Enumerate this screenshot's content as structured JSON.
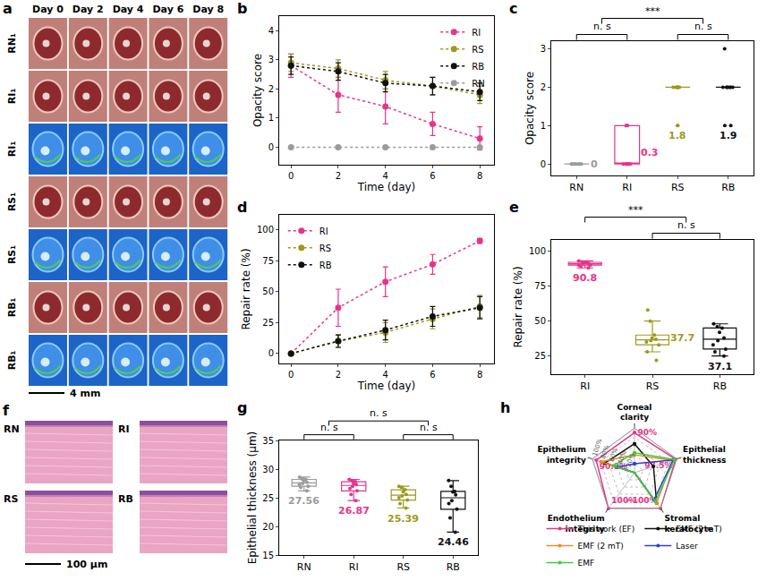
{
  "images": {
    "a": {
      "panel": "a",
      "columns": [
        "Day 0",
        "Day 2",
        "Day 4",
        "Day 6",
        "Day 8"
      ],
      "rows": [
        {
          "label": "RN₁",
          "kind": "photo"
        },
        {
          "label": "RI₁",
          "kind": "photo"
        },
        {
          "label": "RI₁",
          "kind": "fluorescein"
        },
        {
          "label": "RS₁",
          "kind": "photo"
        },
        {
          "label": "RS₁",
          "kind": "fluorescein"
        },
        {
          "label": "RB₁",
          "kind": "photo"
        },
        {
          "label": "RB₁",
          "kind": "fluorescein"
        }
      ],
      "scale_bar": "4 mm"
    },
    "f": {
      "panel": "f",
      "images": [
        "RN",
        "RI",
        "RS",
        "RB"
      ],
      "scale_bar": "100 µm"
    }
  },
  "chart_data": [
    {
      "panel": "b",
      "type": "line",
      "x_label": "Time (day)",
      "y_label": "Opacity score",
      "x": [
        0,
        2,
        4,
        6,
        8
      ],
      "xlim": [
        -0.5,
        8.6
      ],
      "xticks": [
        0,
        2,
        4,
        6,
        8
      ],
      "ylim": [
        -0.6,
        4.5
      ],
      "yticks": [
        0,
        1,
        2,
        3,
        4
      ],
      "legend": "top right",
      "line_style": "dotted",
      "marker": "circle",
      "series": [
        {
          "name": "RI",
          "color": "#e6348c",
          "values": [
            2.8,
            1.8,
            1.4,
            0.8,
            0.3
          ],
          "errors": [
            0.4,
            0.6,
            0.6,
            0.4,
            0.4
          ]
        },
        {
          "name": "RS",
          "color": "#9c9a1e",
          "values": [
            2.9,
            2.7,
            2.3,
            2.1,
            1.8
          ],
          "errors": [
            0.3,
            0.3,
            0.3,
            0.3,
            0.3
          ]
        },
        {
          "name": "RB",
          "color": "#111111",
          "values": [
            2.8,
            2.6,
            2.2,
            2.1,
            1.9
          ],
          "errors": [
            0.3,
            0.3,
            0.3,
            0.3,
            0.3
          ]
        },
        {
          "name": "RN",
          "color": "#9b9b9b",
          "values": [
            0,
            0,
            0,
            0,
            0
          ],
          "errors": [
            0,
            0,
            0,
            0,
            0
          ]
        }
      ]
    },
    {
      "panel": "c",
      "type": "box",
      "y_label": "Opacity score",
      "categories": [
        "RN",
        "RI",
        "RS",
        "RB"
      ],
      "colors": [
        "#9b9b9b",
        "#e6348c",
        "#9c9a1e",
        "#111111"
      ],
      "points": [
        [
          0,
          0,
          0,
          0,
          0,
          0,
          0,
          0,
          0,
          0
        ],
        [
          0,
          0,
          0,
          1,
          0,
          0,
          0,
          1,
          0,
          1
        ],
        [
          2,
          2,
          2,
          1,
          2,
          2,
          2,
          1,
          2,
          2
        ],
        [
          1,
          1,
          2,
          2,
          2,
          2,
          2,
          2,
          2,
          3
        ]
      ],
      "means": [
        0,
        0.3,
        1.8,
        1.9
      ],
      "data_labels": true,
      "ylim": [
        -0.3,
        3.2
      ],
      "yticks": [
        0,
        1,
        2,
        3
      ],
      "significance": [
        {
          "from": [
            "RN"
          ],
          "to": [
            "RI"
          ],
          "label": "n. s"
        },
        {
          "from": [
            "RS"
          ],
          "to": [
            "RB"
          ],
          "label": "n. s"
        },
        {
          "from": [
            "RN",
            "RI"
          ],
          "to": [
            "RS",
            "RB"
          ],
          "label": "***"
        }
      ]
    },
    {
      "panel": "d",
      "type": "line",
      "x_label": "Time (day)",
      "y_label": "Repair rate (%)",
      "x": [
        0,
        2,
        4,
        6,
        8
      ],
      "xlim": [
        -0.5,
        8.6
      ],
      "xticks": [
        0,
        2,
        4,
        6,
        8
      ],
      "ylim": [
        -8,
        112
      ],
      "yticks": [
        0,
        25,
        50,
        75,
        100
      ],
      "legend": "top left",
      "line_style": "dotted",
      "marker": "circle",
      "series": [
        {
          "name": "RI",
          "color": "#e6348c",
          "values": [
            0,
            37,
            58,
            72,
            91
          ],
          "errors": [
            0,
            15,
            12,
            8,
            2
          ]
        },
        {
          "name": "RS",
          "color": "#9c9a1e",
          "values": [
            0,
            10,
            17,
            28,
            38
          ],
          "errors": [
            0,
            5,
            8,
            8,
            9
          ]
        },
        {
          "name": "RB",
          "color": "#111111",
          "values": [
            0,
            10,
            19,
            30,
            37
          ],
          "errors": [
            0,
            5,
            8,
            8,
            9
          ]
        }
      ]
    },
    {
      "panel": "e",
      "type": "box",
      "y_label": "Repair rate (%)",
      "categories": [
        "RI",
        "RS",
        "RB"
      ],
      "colors": [
        "#e6348c",
        "#9c9a1e",
        "#111111"
      ],
      "points": [
        [
          88,
          89,
          90,
          91,
          92,
          92,
          91,
          93,
          90,
          92
        ],
        [
          22,
          28,
          33,
          35,
          36,
          37,
          38,
          40,
          50,
          58
        ],
        [
          25,
          28,
          30,
          33,
          36,
          38,
          42,
          45,
          48,
          46
        ]
      ],
      "means": [
        90.8,
        37.7,
        37.1
      ],
      "data_labels": true,
      "ylim": [
        12,
        108
      ],
      "yticks": [
        25,
        50,
        75,
        100
      ],
      "significance": [
        {
          "from": [
            "RS"
          ],
          "to": [
            "RB"
          ],
          "label": "n. s"
        },
        {
          "from": [
            "RI"
          ],
          "to": [
            "RS",
            "RB"
          ],
          "label": "***"
        }
      ]
    },
    {
      "panel": "g",
      "type": "box",
      "y_label": "Epithelial thickness (μm)",
      "categories": [
        "RN",
        "RI",
        "RS",
        "RB"
      ],
      "colors": [
        "#9b9b9b",
        "#e6348c",
        "#9c9a1e",
        "#111111"
      ],
      "points": [
        [
          26.2,
          26.8,
          27.0,
          27.3,
          27.5,
          27.7,
          28.0,
          28.3,
          28.6,
          28.2
        ],
        [
          24.5,
          25.6,
          26.2,
          26.6,
          27.0,
          27.3,
          27.5,
          27.8,
          28.2,
          28.0
        ],
        [
          23.2,
          24.0,
          24.6,
          25.0,
          25.3,
          25.6,
          26.0,
          26.4,
          26.8,
          27.0
        ],
        [
          19.0,
          21.5,
          23.0,
          24.0,
          24.5,
          25.5,
          26.0,
          27.0,
          28.0,
          26.1
        ]
      ],
      "means": [
        27.56,
        26.87,
        25.39,
        24.46
      ],
      "data_labels": true,
      "ylim": [
        15,
        35
      ],
      "yticks": [
        15,
        20,
        25,
        30,
        35
      ],
      "significance": [
        {
          "from": [
            "RN"
          ],
          "to": [
            "RI"
          ],
          "label": "n. s"
        },
        {
          "from": [
            "RS"
          ],
          "to": [
            "RB"
          ],
          "label": "n. s"
        },
        {
          "from": [
            "RN",
            "RI"
          ],
          "to": [
            "RS",
            "RB"
          ],
          "label": "n. s"
        }
      ]
    },
    {
      "panel": "h",
      "type": "radar",
      "axes": [
        "Corneal clarity",
        "Epithelial thickness",
        "Stromal keratocyte",
        "Endothelium integrity",
        "Epithelium integrity"
      ],
      "ylim": [
        0,
        100
      ],
      "yticks": [
        {
          "value": 20,
          "label": "20%"
        },
        {
          "value": 40,
          "label": "40%"
        },
        {
          "value": 60,
          "label": "60%"
        },
        {
          "value": 80,
          "label": "80%"
        },
        {
          "value": 100,
          "label": "100%"
        }
      ],
      "legend": "bottom",
      "grid": true,
      "series": [
        {
          "name": "This work (EF)",
          "color": "#e6348c",
          "values": [
            90,
            97.5,
            100,
            100,
            90.8
          ],
          "value_labels": [
            "90%",
            "97.5%",
            "~100%",
            "100%",
            "90.8%"
          ]
        },
        {
          "name": "EMF (2 mT)",
          "color": "#111111",
          "values": [
            65,
            45,
            85,
            0,
            70
          ]
        },
        {
          "name": "EMF (2 mT)",
          "color": "#f08a24",
          "values": [
            40,
            90,
            85,
            0,
            80
          ]
        },
        {
          "name": "Laser",
          "color": "#2a3fd6",
          "values": [
            20,
            92,
            75,
            0,
            40
          ]
        },
        {
          "name": "EMF",
          "color": "#3ccf3c",
          "values": [
            45,
            95,
            80,
            0,
            50
          ]
        }
      ]
    }
  ]
}
